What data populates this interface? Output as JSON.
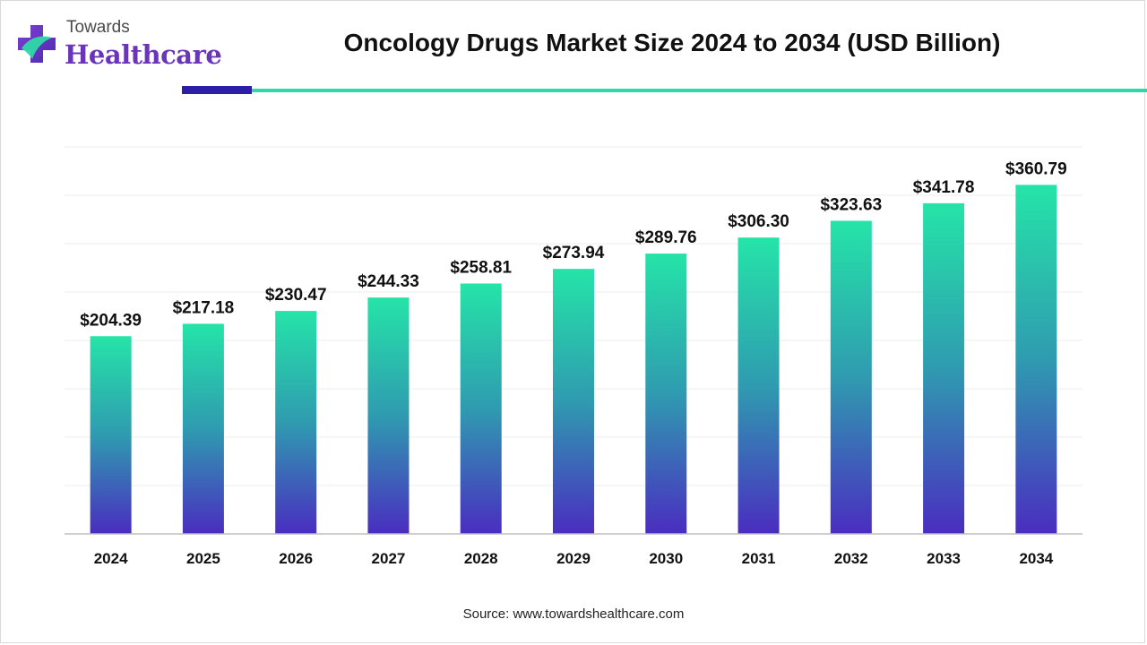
{
  "brand": {
    "top": "Towards",
    "main": "Healthcare",
    "icon": "medical-cross-logo-icon"
  },
  "colors": {
    "bar_top": "#25e4a8",
    "bar_bottom": "#4a2dc0",
    "rule_accent": "#2d1ea8",
    "rule_line": "#2ed9a8",
    "grid": "#ececec",
    "axis": "#bfbfbf"
  },
  "chart_data": {
    "type": "bar",
    "title": "Oncology Drugs Market Size 2024 to 2034 (USD Billion)",
    "xlabel": "",
    "ylabel": "",
    "categories": [
      "2024",
      "2025",
      "2026",
      "2027",
      "2028",
      "2029",
      "2030",
      "2031",
      "2032",
      "2033",
      "2034"
    ],
    "values": [
      204.39,
      217.18,
      230.47,
      244.33,
      258.81,
      273.94,
      289.76,
      306.3,
      323.63,
      341.78,
      360.79
    ],
    "data_labels": [
      "$204.39",
      "$217.18",
      "$230.47",
      "$244.33",
      "$258.81",
      "$273.94",
      "$289.76",
      "$306.30",
      "$323.63",
      "$341.78",
      "$360.79"
    ],
    "ylim": [
      0,
      400
    ],
    "grid": true,
    "legend": "none"
  },
  "source": "Source: www.towardshealthcare.com"
}
